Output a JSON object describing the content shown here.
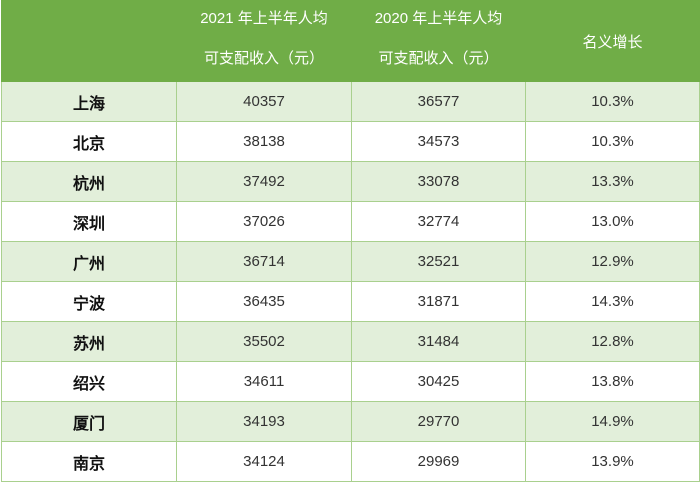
{
  "chart_data": {
    "type": "table",
    "columns": [
      {
        "line1": "",
        "line2": ""
      },
      {
        "line1": "2021 年上半年人均",
        "line2": "可支配收入（元）"
      },
      {
        "line1": "2020 年上半年人均",
        "line2": "可支配收入（元）"
      },
      {
        "line1": "名义增长",
        "line2": ""
      }
    ],
    "rows": [
      [
        "上海",
        "40357",
        "36577",
        "10.3%"
      ],
      [
        "北京",
        "38138",
        "34573",
        "10.3%"
      ],
      [
        "杭州",
        "37492",
        "33078",
        "13.3%"
      ],
      [
        "深圳",
        "37026",
        "32774",
        "13.0%"
      ],
      [
        "广州",
        "36714",
        "32521",
        "12.9%"
      ],
      [
        "宁波",
        "36435",
        "31871",
        "14.3%"
      ],
      [
        "苏州",
        "35502",
        "31484",
        "12.8%"
      ],
      [
        "绍兴",
        "34611",
        "30425",
        "13.8%"
      ],
      [
        "厦门",
        "34193",
        "29770",
        "14.9%"
      ],
      [
        "南京",
        "34124",
        "29969",
        "13.9%"
      ]
    ],
    "colors": {
      "header": "#70ad47",
      "stripe": "#e2efda",
      "border": "#a9d08e"
    }
  }
}
